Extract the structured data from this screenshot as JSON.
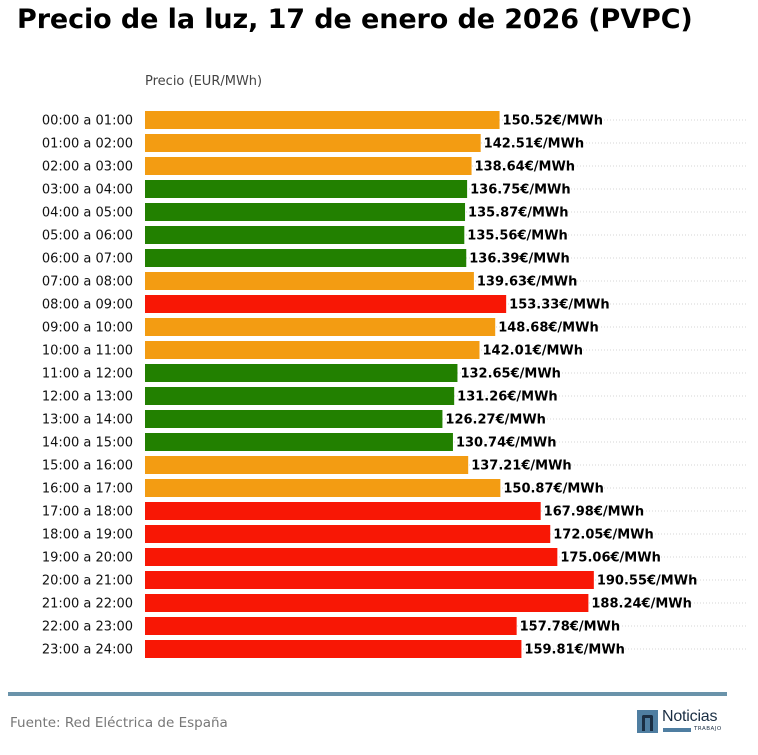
{
  "chart_data": {
    "type": "bar",
    "orientation": "horizontal",
    "title": "Precio de la luz, 17 de enero de 2026 (PVPC)",
    "xlabel": "Precio (EUR/MWh)",
    "ylabel": "",
    "xlim": [
      0,
      256
    ],
    "grid": "dotted horizontal lines per row",
    "value_suffix": "€/MWh",
    "categories": [
      "00:00 a 01:00",
      "01:00 a 02:00",
      "02:00 a 03:00",
      "03:00 a 04:00",
      "04:00 a 05:00",
      "05:00 a 06:00",
      "06:00 a 07:00",
      "07:00 a 08:00",
      "08:00 a 09:00",
      "09:00 a 10:00",
      "10:00 a 11:00",
      "11:00 a 12:00",
      "12:00 a 13:00",
      "13:00 a 14:00",
      "14:00 a 15:00",
      "15:00 a 16:00",
      "16:00 a 17:00",
      "17:00 a 18:00",
      "18:00 a 19:00",
      "19:00 a 20:00",
      "20:00 a 21:00",
      "21:00 a 22:00",
      "22:00 a 23:00",
      "23:00 a 24:00"
    ],
    "values": [
      150.52,
      142.51,
      138.64,
      136.75,
      135.87,
      135.56,
      136.39,
      139.63,
      153.33,
      148.68,
      142.01,
      132.65,
      131.26,
      126.27,
      130.74,
      137.21,
      150.87,
      167.98,
      172.05,
      175.06,
      190.55,
      188.24,
      157.78,
      159.81
    ],
    "value_labels": [
      "150.52€/MWh",
      "142.51€/MWh",
      "138.64€/MWh",
      "136.75€/MWh",
      "135.87€/MWh",
      "135.56€/MWh",
      "136.39€/MWh",
      "139.63€/MWh",
      "153.33€/MWh",
      "148.68€/MWh",
      "142.01€/MWh",
      "132.65€/MWh",
      "131.26€/MWh",
      "126.27€/MWh",
      "130.74€/MWh",
      "137.21€/MWh",
      "150.87€/MWh",
      "167.98€/MWh",
      "172.05€/MWh",
      "175.06€/MWh",
      "190.55€/MWh",
      "188.24€/MWh",
      "157.78€/MWh",
      "159.81€/MWh"
    ],
    "price_levels": [
      "medium",
      "medium",
      "medium",
      "low",
      "low",
      "low",
      "low",
      "medium",
      "high",
      "medium",
      "medium",
      "low",
      "low",
      "low",
      "low",
      "medium",
      "medium",
      "high",
      "high",
      "high",
      "high",
      "high",
      "high",
      "high"
    ],
    "level_colors": {
      "low": "#228000",
      "medium": "#f39c12",
      "high": "#f81705"
    }
  },
  "footer": {
    "source": "Fuente: Red Eléctrica de España",
    "logo_text": "Noticias",
    "logo_subtext": "TRABAJO",
    "accent_color": "#6a93aa"
  }
}
